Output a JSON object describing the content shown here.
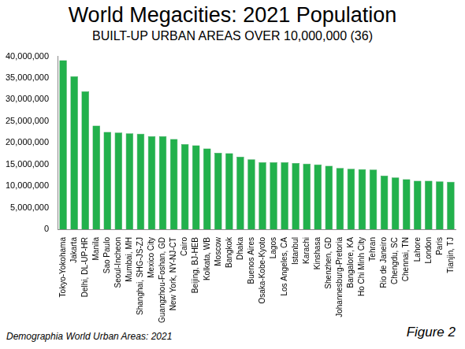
{
  "chart_data": {
    "type": "bar",
    "title": "World Megacities: 2021 Population",
    "subtitle": "BUILT-UP URBAN AREAS OVER 10,000,000 (36)",
    "annotations": [
      "Demographia World Urban Areas: 2021",
      "Figure 2"
    ],
    "categories": [
      "Tokyo-Yokohama",
      "Jakarta",
      "Delhi, DL-UP-HR",
      "Manila",
      "Sao Paulo",
      "Seoul-Incheon",
      "Mumbai, MH",
      "Shanghai, SHG-JS-ZJ",
      "Mexico City",
      "Guangzhou-Foshan, GD",
      "New York, NY-NJ-CT",
      "Cairo",
      "Beijing, BJ-HEB",
      "Kolkata, WB",
      "Moscow",
      "Bangkok",
      "Dhaka",
      "Buenos Aires",
      "Osaka-Kobe-Kyoto",
      "Lagos",
      "Los Angeles, CA",
      "Istanbul",
      "Karachi",
      "Kinshasa",
      "Shenzhen, GD",
      "Johannesburg-Pretoria",
      "Bangalore, KA",
      "Ho Chi Minh City",
      "Tehran",
      "Rio de Janeiro",
      "Chengdu, SC",
      "Chennai, TN",
      "Lahore",
      "London",
      "Paris",
      "Tianjin, TJ"
    ],
    "values": [
      39100000,
      35400000,
      31900000,
      24000000,
      22500000,
      22400000,
      22200000,
      22100000,
      21500000,
      21500000,
      20900000,
      19700000,
      19400000,
      18700000,
      17700000,
      17600000,
      16800000,
      16200000,
      15500000,
      15500000,
      15500000,
      15300000,
      15200000,
      15000000,
      14700000,
      14200000,
      14000000,
      13900000,
      13800000,
      12400000,
      12000000,
      11600000,
      11200000,
      11200000,
      11100000,
      11000000
    ],
    "color": "#22b14c",
    "ylim": [
      0,
      40000000
    ],
    "yticks": [
      {
        "value": 0,
        "label": "0"
      },
      {
        "value": 5000000,
        "label": "5,000,000"
      },
      {
        "value": 10000000,
        "label": "10,000,000"
      },
      {
        "value": 15000000,
        "label": "15,000,000"
      },
      {
        "value": 20000000,
        "label": "20,000,000"
      },
      {
        "value": 25000000,
        "label": "25,000,000"
      },
      {
        "value": 30000000,
        "label": "30,000,000"
      },
      {
        "value": 35000000,
        "label": "35,000,000"
      },
      {
        "value": 40000000,
        "label": "40,000,000"
      }
    ],
    "grid": false
  }
}
